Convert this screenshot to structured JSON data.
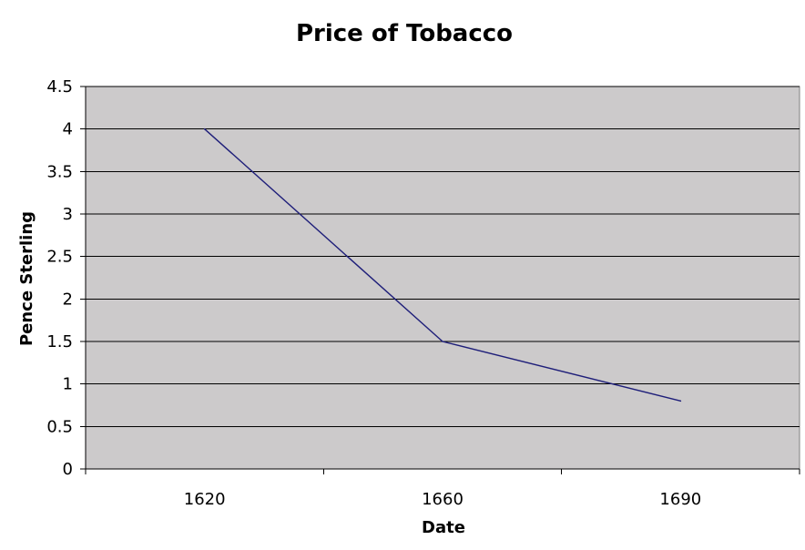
{
  "chart_data": {
    "type": "line",
    "title": "Price of Tobacco",
    "xlabel": "Date",
    "ylabel": "Pence Sterling",
    "categories": [
      "1620",
      "1660",
      "1690"
    ],
    "series": [
      {
        "values": [
          4,
          1.5,
          0.8
        ]
      }
    ],
    "ylim": [
      0,
      4.5
    ],
    "yticks": [
      "0",
      "0.5",
      "1",
      "1.5",
      "2",
      "2.5",
      "3",
      "3.5",
      "4",
      "4.5"
    ],
    "grid": true,
    "legend": "none",
    "colors": {
      "plot_background": "#cccacb",
      "gridline": "#000000",
      "line": "#1f1f7a"
    }
  }
}
